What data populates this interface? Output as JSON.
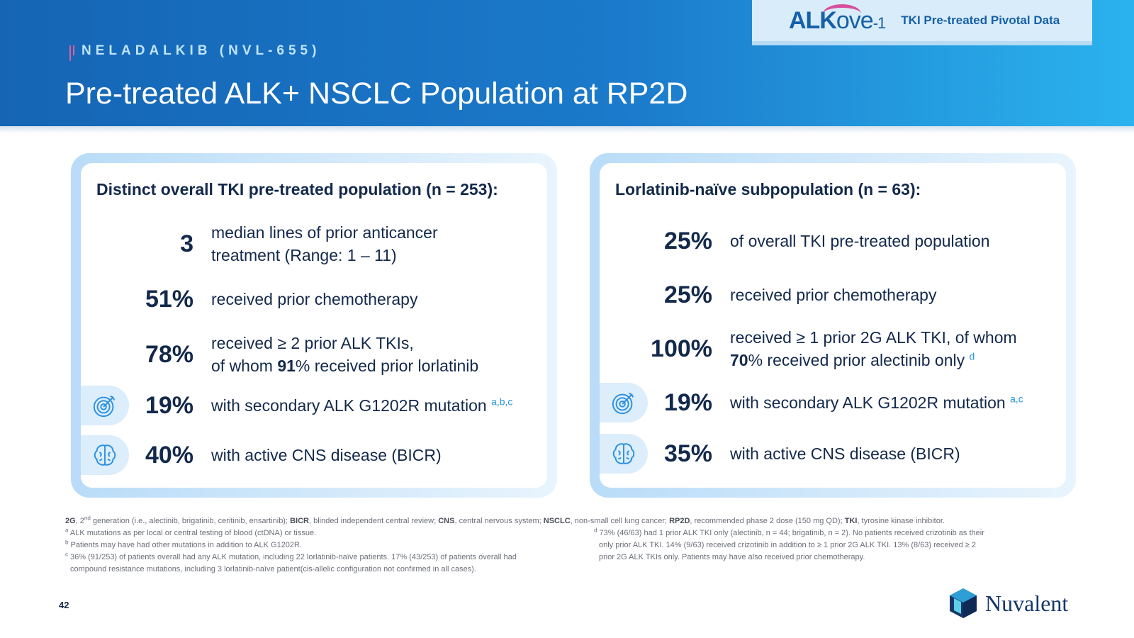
{
  "header": {
    "eyebrow": "NELADALKIB (NVL-655)",
    "title": "Pre-treated ALK+ NSCLC Population at RP2D",
    "brand": {
      "logo_alk": "ALK",
      "logo_ove": "ove",
      "logo_suffix": "-1",
      "subtitle": "TKI Pre-treated Pivotal Data"
    }
  },
  "left_panel": {
    "heading": "Distinct overall TKI pre-treated population (n = 253):",
    "stats": [
      {
        "value": "3",
        "line1": "median lines of prior anticancer",
        "line2": "treatment (Range: 1 – 11)"
      },
      {
        "value": "51%",
        "text": "received prior chemotherapy"
      },
      {
        "value": "78%",
        "line1": "received ≥ 2 prior ALK TKIs,",
        "line2_pre": "of whom ",
        "line2_bold": "91",
        "line2_post": "% received prior lorlatinib"
      },
      {
        "value": "19%",
        "text": "with secondary ALK G1202R mutation",
        "sup": "a,b,c",
        "icon": "target-icon"
      },
      {
        "value": "40%",
        "text": "with active CNS disease (BICR)",
        "icon": "brain-icon"
      }
    ]
  },
  "right_panel": {
    "heading": "Lorlatinib-naïve subpopulation (n = 63):",
    "stats": [
      {
        "value": "25%",
        "text": "of overall TKI pre-treated population"
      },
      {
        "value": "25%",
        "text": "received prior chemotherapy"
      },
      {
        "value": "100%",
        "line1": "received ≥ 1 prior 2G ALK TKI, of whom",
        "line2_bold": "70",
        "line2_post": "% received prior alectinib only",
        "sup": "d"
      },
      {
        "value": "19%",
        "text": "with secondary ALK G1202R mutation",
        "sup": "a,c",
        "icon": "target-icon"
      },
      {
        "value": "35%",
        "text": "with active CNS disease (BICR)",
        "icon": "brain-icon"
      }
    ]
  },
  "footnotes": {
    "abbrev": [
      {
        "b": "2G",
        "t": ", 2"
      },
      {
        "sup": "nd"
      },
      {
        "t": " generation (i.e., alectinib, brigatinib, ceritinib, ensartinib); "
      },
      {
        "b": "BICR",
        "t": ", blinded independent central review; "
      },
      {
        "b": "CNS",
        "t": ", central nervous system; "
      },
      {
        "b": "NSCLC",
        "t": ", non-small cell lung cancer; "
      },
      {
        "b": "RP2D",
        "t": ", recommended phase 2 dose (150 mg QD); "
      },
      {
        "b": "TKI",
        "t": ", tyrosine kinase inhibitor."
      }
    ],
    "a": {
      "mark": "a",
      "text": " ALK mutations as per local or central testing of blood (ctDNA) or tissue."
    },
    "b": {
      "mark": "b",
      "text": " Patients may have had other mutations in addition to ALK G1202R."
    },
    "c": {
      "mark": "c",
      "line1": " 36% (91/253) of patients overall had any ALK mutation, including 22 lorlatinib-naïve patients. 17% (43/253) of patients overall had",
      "line2": "compound resistance mutations, including 3 lorlatinib-naïve patient(cis-allelic configuration not confirmed in all cases)."
    },
    "d": {
      "mark": "d",
      "line1": " 73% (46/63) had 1 prior ALK TKI only (alectinib, n = 44; brigatinib, n = 2). No patients received crizotinib as their",
      "line2": "only prior ALK TKI. 14% (9/63) received crizotinib in addition to ≥ 1 prior 2G ALK TKI. 13% (8/63) received ≥ 2",
      "line3": "prior 2G ALK TKIs only. Patients may have also received prior chemotherapy."
    }
  },
  "page_number": "42",
  "company": "Nuvalent",
  "colors": {
    "header_start": "#1565b4",
    "header_end": "#2bb3ee",
    "navy": "#13294b",
    "accent_blue": "#2596e1",
    "accent_pink": "#d74e9e"
  }
}
